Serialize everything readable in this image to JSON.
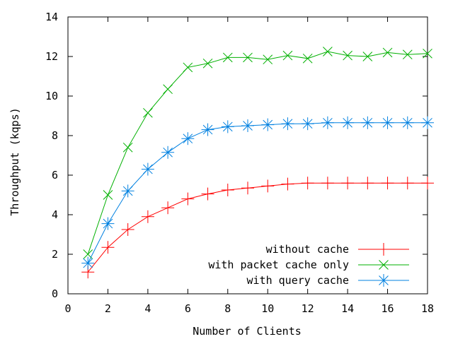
{
  "chart_data": {
    "type": "line",
    "title": "",
    "xlabel": "Number of Clients",
    "ylabel": "Throughput (kqps)",
    "xlim": [
      0,
      18
    ],
    "ylim": [
      0,
      14
    ],
    "xticks": [
      0,
      2,
      4,
      6,
      8,
      10,
      12,
      14,
      16,
      18
    ],
    "yticks": [
      0,
      2,
      4,
      6,
      8,
      10,
      12,
      14
    ],
    "grid": false,
    "legend_position": "bottom-right",
    "x": [
      1,
      2,
      3,
      4,
      5,
      6,
      7,
      8,
      9,
      10,
      11,
      12,
      13,
      14,
      15,
      16,
      17,
      18
    ],
    "series": [
      {
        "name": "without cache",
        "marker": "plus",
        "color": "#ff0000",
        "values": [
          1.1,
          2.35,
          3.25,
          3.9,
          4.35,
          4.8,
          5.05,
          5.25,
          5.35,
          5.45,
          5.55,
          5.6,
          5.6,
          5.6,
          5.6,
          5.6,
          5.6,
          5.6
        ]
      },
      {
        "name": "with packet cache only",
        "marker": "cross",
        "color": "#00b000",
        "values": [
          2.0,
          5.0,
          7.4,
          9.15,
          10.35,
          11.45,
          11.65,
          11.95,
          11.95,
          11.85,
          12.05,
          11.9,
          12.25,
          12.05,
          12.0,
          12.2,
          12.1,
          12.15
        ]
      },
      {
        "name": "with query cache",
        "marker": "star",
        "color": "#0080e0",
        "values": [
          1.55,
          3.55,
          5.2,
          6.3,
          7.15,
          7.85,
          8.3,
          8.45,
          8.5,
          8.55,
          8.6,
          8.6,
          8.65,
          8.65,
          8.65,
          8.65,
          8.65,
          8.65
        ]
      }
    ]
  }
}
